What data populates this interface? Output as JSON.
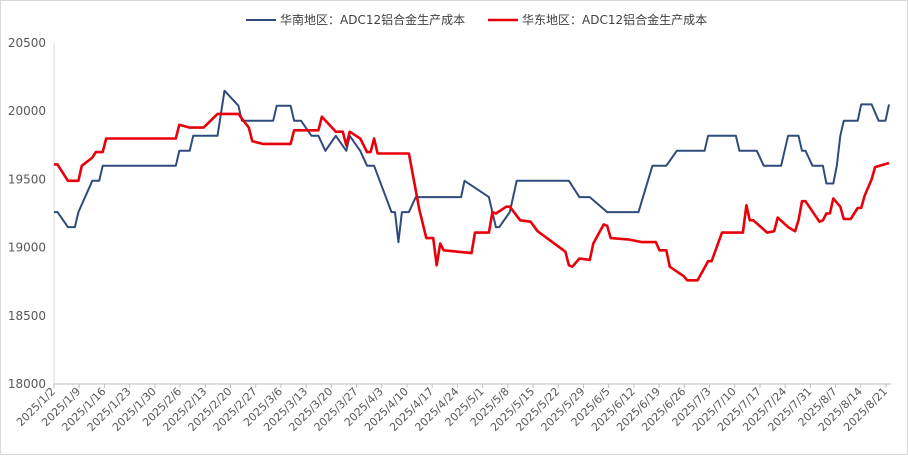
{
  "chart_data": {
    "type": "line",
    "ylim": [
      18000,
      20500
    ],
    "yticks": [
      18000,
      18500,
      19000,
      19500,
      20000,
      20500
    ],
    "grid": false,
    "legend_position": "top",
    "x_start": "2025/1/2",
    "x_end": "2025/8/21",
    "x_tick_labels": [
      "2025/1/2",
      "2025/1/9",
      "2025/1/16",
      "2025/1/23",
      "2025/1/30",
      "2025/2/6",
      "2025/2/13",
      "2025/2/20",
      "2025/2/27",
      "2025/3/6",
      "2025/3/13",
      "2025/3/20",
      "2025/3/27",
      "2025/4/3",
      "2025/4/10",
      "2025/4/17",
      "2025/4/24",
      "2025/5/1",
      "2025/5/8",
      "2025/5/15",
      "2025/5/22",
      "2025/5/29",
      "2025/6/5",
      "2025/6/12",
      "2025/6/19",
      "2025/6/26",
      "2025/7/3",
      "2025/7/10",
      "2025/7/17",
      "2025/7/24",
      "2025/7/31",
      "2025/8/7",
      "2025/8/14",
      "2025/8/21"
    ],
    "series": [
      {
        "name": "华南地区：ADC12铝合金生产成本",
        "color": "#2f4b7c",
        "points": [
          [
            "2025/1/2",
            19260
          ],
          [
            "2025/1/3",
            19260
          ],
          [
            "2025/1/6",
            19150
          ],
          [
            "2025/1/8",
            19150
          ],
          [
            "2025/1/9",
            19260
          ],
          [
            "2025/1/13",
            19490
          ],
          [
            "2025/1/15",
            19490
          ],
          [
            "2025/1/16",
            19600
          ],
          [
            "2025/2/6",
            19600
          ],
          [
            "2025/2/7",
            19710
          ],
          [
            "2025/2/10",
            19710
          ],
          [
            "2025/2/11",
            19820
          ],
          [
            "2025/2/18",
            19820
          ],
          [
            "2025/2/20",
            20150
          ],
          [
            "2025/2/24",
            20040
          ],
          [
            "2025/2/25",
            19930
          ],
          [
            "2025/3/6",
            19930
          ],
          [
            "2025/3/7",
            20040
          ],
          [
            "2025/3/11",
            20040
          ],
          [
            "2025/3/12",
            19930
          ],
          [
            "2025/3/14",
            19930
          ],
          [
            "2025/3/17",
            19820
          ],
          [
            "2025/3/19",
            19820
          ],
          [
            "2025/3/21",
            19710
          ],
          [
            "2025/3/24",
            19820
          ],
          [
            "2025/3/27",
            19710
          ],
          [
            "2025/3/28",
            19820
          ],
          [
            "2025/3/31",
            19710
          ],
          [
            "2025/4/2",
            19600
          ],
          [
            "2025/4/4",
            19600
          ],
          [
            "2025/4/9",
            19260
          ],
          [
            "2025/4/10",
            19260
          ],
          [
            "2025/4/11",
            19040
          ],
          [
            "2025/4/12",
            19260
          ],
          [
            "2025/4/14",
            19260
          ],
          [
            "2025/4/16",
            19370
          ],
          [
            "2025/4/29",
            19370
          ],
          [
            "2025/4/30",
            19490
          ],
          [
            "2025/5/7",
            19370
          ],
          [
            "2025/5/9",
            19150
          ],
          [
            "2025/5/10",
            19150
          ],
          [
            "2025/5/13",
            19260
          ],
          [
            "2025/5/15",
            19490
          ],
          [
            "2025/5/30",
            19490
          ],
          [
            "2025/6/2",
            19370
          ],
          [
            "2025/6/5",
            19370
          ],
          [
            "2025/6/10",
            19260
          ],
          [
            "2025/6/19",
            19260
          ],
          [
            "2025/6/23",
            19600
          ],
          [
            "2025/6/27",
            19600
          ],
          [
            "2025/6/30",
            19710
          ],
          [
            "2025/7/8",
            19710
          ],
          [
            "2025/7/9",
            19820
          ],
          [
            "2025/7/17",
            19820
          ],
          [
            "2025/7/18",
            19710
          ],
          [
            "2025/7/23",
            19710
          ],
          [
            "2025/7/25",
            19600
          ],
          [
            "2025/7/30",
            19600
          ],
          [
            "2025/8/1",
            19820
          ],
          [
            "2025/8/4",
            19820
          ],
          [
            "2025/8/5",
            19710
          ],
          [
            "2025/8/6",
            19710
          ],
          [
            "2025/8/8",
            19600
          ],
          [
            "2025/8/11",
            19600
          ],
          [
            "2025/8/12",
            19470
          ],
          [
            "2025/8/14",
            19470
          ],
          [
            "2025/8/15",
            19600
          ],
          [
            "2025/8/16",
            19820
          ],
          [
            "2025/8/17",
            19930
          ],
          [
            "2025/8/21",
            19930
          ],
          [
            "2025/8/22",
            20050
          ],
          [
            "2025/8/25",
            20050
          ],
          [
            "2025/8/27",
            19930
          ],
          [
            "2025/8/29",
            19930
          ],
          [
            "2025/8/30",
            20050
          ]
        ]
      },
      {
        "name": "华东地区：ADC12铝合金生产成本",
        "color": "#e8000b",
        "points": [
          [
            "2025/1/2",
            19610
          ],
          [
            "2025/1/3",
            19610
          ],
          [
            "2025/1/6",
            19490
          ],
          [
            "2025/1/9",
            19490
          ],
          [
            "2025/1/10",
            19600
          ],
          [
            "2025/1/13",
            19660
          ],
          [
            "2025/1/14",
            19700
          ],
          [
            "2025/1/16",
            19700
          ],
          [
            "2025/1/17",
            19800
          ],
          [
            "2025/2/6",
            19800
          ],
          [
            "2025/2/7",
            19900
          ],
          [
            "2025/2/10",
            19880
          ],
          [
            "2025/2/11",
            19880
          ],
          [
            "2025/2/14",
            19880
          ],
          [
            "2025/2/18",
            19980
          ],
          [
            "2025/2/24",
            19980
          ],
          [
            "2025/2/27",
            19880
          ],
          [
            "2025/2/28",
            19780
          ],
          [
            "2025/3/3",
            19760
          ],
          [
            "2025/3/11",
            19760
          ],
          [
            "2025/3/12",
            19860
          ],
          [
            "2025/3/19",
            19860
          ],
          [
            "2025/3/20",
            19960
          ],
          [
            "2025/3/24",
            19850
          ],
          [
            "2025/3/26",
            19850
          ],
          [
            "2025/3/27",
            19750
          ],
          [
            "2025/3/28",
            19850
          ],
          [
            "2025/3/31",
            19800
          ],
          [
            "2025/4/2",
            19700
          ],
          [
            "2025/4/3",
            19700
          ],
          [
            "2025/4/4",
            19800
          ],
          [
            "2025/4/5",
            19690
          ],
          [
            "2025/4/14",
            19690
          ],
          [
            "2025/4/17",
            19280
          ],
          [
            "2025/4/19",
            19070
          ],
          [
            "2025/4/21",
            19070
          ],
          [
            "2025/4/22",
            18870
          ],
          [
            "2025/4/23",
            19030
          ],
          [
            "2025/4/24",
            18980
          ],
          [
            "2025/4/28",
            18970
          ],
          [
            "2025/5/2",
            18960
          ],
          [
            "2025/5/3",
            19110
          ],
          [
            "2025/5/7",
            19110
          ],
          [
            "2025/5/8",
            19260
          ],
          [
            "2025/5/9",
            19250
          ],
          [
            "2025/5/12",
            19300
          ],
          [
            "2025/5/13",
            19300
          ],
          [
            "2025/5/16",
            19200
          ],
          [
            "2025/5/19",
            19190
          ],
          [
            "2025/5/21",
            19120
          ],
          [
            "2025/5/29",
            18970
          ],
          [
            "2025/5/30",
            18870
          ],
          [
            "2025/5/31",
            18860
          ],
          [
            "2025/6/2",
            18920
          ],
          [
            "2025/6/5",
            18910
          ],
          [
            "2025/6/6",
            19030
          ],
          [
            "2025/6/9",
            19170
          ],
          [
            "2025/6/10",
            19160
          ],
          [
            "2025/6/11",
            19070
          ],
          [
            "2025/6/16",
            19060
          ],
          [
            "2025/6/20",
            19040
          ],
          [
            "2025/6/24",
            19040
          ],
          [
            "2025/6/25",
            18980
          ],
          [
            "2025/6/27",
            18980
          ],
          [
            "2025/6/28",
            18860
          ],
          [
            "2025/7/2",
            18790
          ],
          [
            "2025/7/3",
            18760
          ],
          [
            "2025/7/6",
            18760
          ],
          [
            "2025/7/9",
            18900
          ],
          [
            "2025/7/10",
            18900
          ],
          [
            "2025/7/13",
            19110
          ],
          [
            "2025/7/19",
            19110
          ],
          [
            "2025/7/20",
            19310
          ],
          [
            "2025/7/21",
            19200
          ],
          [
            "2025/7/22",
            19200
          ],
          [
            "2025/7/26",
            19110
          ],
          [
            "2025/7/28",
            19120
          ],
          [
            "2025/7/29",
            19220
          ],
          [
            "2025/8/1",
            19150
          ],
          [
            "2025/8/3",
            19120
          ],
          [
            "2025/8/4",
            19200
          ],
          [
            "2025/8/5",
            19340
          ],
          [
            "2025/8/6",
            19340
          ],
          [
            "2025/8/10",
            19190
          ],
          [
            "2025/8/11",
            19200
          ],
          [
            "2025/8/12",
            19250
          ],
          [
            "2025/8/13",
            19250
          ],
          [
            "2025/8/14",
            19360
          ],
          [
            "2025/8/16",
            19300
          ],
          [
            "2025/8/17",
            19210
          ],
          [
            "2025/8/19",
            19210
          ],
          [
            "2025/8/21",
            19290
          ],
          [
            "2025/8/22",
            19290
          ],
          [
            "2025/8/23",
            19380
          ],
          [
            "2025/8/25",
            19500
          ],
          [
            "2025/8/26",
            19590
          ],
          [
            "2025/8/30",
            19620
          ]
        ]
      }
    ]
  }
}
